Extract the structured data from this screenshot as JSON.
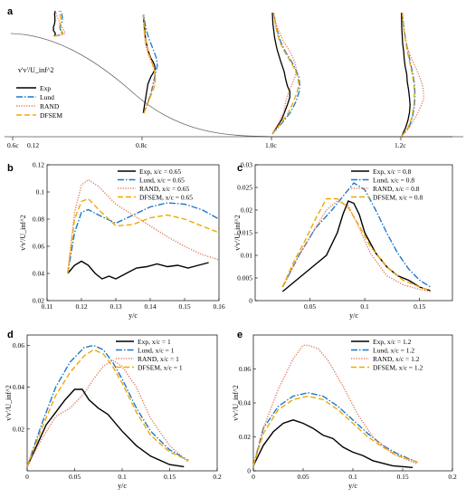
{
  "figure": {
    "panel_letters": [
      "a",
      "b",
      "c",
      "d",
      "e"
    ]
  },
  "styles": {
    "Exp": {
      "color": "#000000",
      "dash": ""
    },
    "Lund": {
      "color": "#1f78c8",
      "dash": "7 2 1.5 2"
    },
    "RAND": {
      "color": "#e0785a",
      "dash": "1.2 1.6"
    },
    "DFSEM": {
      "color": "#f0a800",
      "dash": "6 3"
    }
  },
  "chart_data": [
    {
      "panel": "a",
      "type": "line",
      "ylabel": "v'v'/U_inf^2",
      "x_tick_labels": [
        "0.6c",
        "0.12",
        "0.8c",
        "1.0c",
        "1.2c"
      ],
      "legend": [
        "Exp",
        "Lund",
        "RAND",
        "DFSEM"
      ],
      "series": [
        {
          "name": "Exp",
          "profiles": [
            "0.65",
            "0.8",
            "1.0",
            "1.2"
          ]
        },
        {
          "name": "Lund",
          "profiles": [
            "0.65",
            "0.8",
            "1.0",
            "1.2"
          ]
        },
        {
          "name": "RAND",
          "profiles": [
            "0.65",
            "0.8",
            "1.0",
            "1.2"
          ]
        },
        {
          "name": "DFSEM",
          "profiles": [
            "0.65",
            "0.8",
            "1.0",
            "1.2"
          ]
        }
      ]
    },
    {
      "panel": "b",
      "type": "line",
      "xlabel": "y/c",
      "ylabel": "v'v'/U_inf^2",
      "xlim": [
        0.11,
        0.16
      ],
      "ylim": [
        0.02,
        0.12
      ],
      "xticks": [
        0.11,
        0.12,
        0.13,
        0.14,
        0.15,
        0.16
      ],
      "yticks": [
        0.02,
        0.04,
        0.06,
        0.08,
        0.1,
        0.12
      ],
      "legend_position": "top-right",
      "series": [
        {
          "name": "Exp, x/c = 0.65",
          "x": [
            0.116,
            0.118,
            0.12,
            0.122,
            0.124,
            0.126,
            0.128,
            0.13,
            0.133,
            0.136,
            0.139,
            0.142,
            0.145,
            0.148,
            0.151,
            0.154,
            0.157
          ],
          "y": [
            0.04,
            0.046,
            0.049,
            0.046,
            0.04,
            0.036,
            0.038,
            0.036,
            0.04,
            0.044,
            0.045,
            0.047,
            0.045,
            0.046,
            0.044,
            0.046,
            0.048
          ]
        },
        {
          "name": "Lund, x/c = 0.65",
          "x": [
            0.116,
            0.118,
            0.12,
            0.122,
            0.125,
            0.13,
            0.135,
            0.14,
            0.145,
            0.15,
            0.155,
            0.16
          ],
          "y": [
            0.04,
            0.07,
            0.085,
            0.087,
            0.083,
            0.077,
            0.083,
            0.089,
            0.092,
            0.091,
            0.087,
            0.08
          ]
        },
        {
          "name": "RAND, x/c = 0.65",
          "x": [
            0.116,
            0.118,
            0.12,
            0.122,
            0.125,
            0.13,
            0.135,
            0.14,
            0.145,
            0.15,
            0.155,
            0.16
          ],
          "y": [
            0.04,
            0.085,
            0.105,
            0.109,
            0.104,
            0.091,
            0.083,
            0.075,
            0.067,
            0.06,
            0.054,
            0.05
          ]
        },
        {
          "name": "DFSEM, x/c = 0.65",
          "x": [
            0.116,
            0.118,
            0.12,
            0.122,
            0.125,
            0.13,
            0.135,
            0.14,
            0.145,
            0.15,
            0.155,
            0.16
          ],
          "y": [
            0.04,
            0.08,
            0.093,
            0.095,
            0.087,
            0.075,
            0.076,
            0.081,
            0.083,
            0.08,
            0.075,
            0.07
          ]
        }
      ]
    },
    {
      "panel": "c",
      "type": "line",
      "xlabel": "y/c",
      "ylabel": "v'v'/U_inf^2",
      "xlim": [
        0,
        0.18
      ],
      "ylim": [
        0,
        0.03
      ],
      "xticks": [
        0.05,
        0.1,
        0.15
      ],
      "yticks": [
        0,
        0.005,
        0.01,
        0.015,
        0.02,
        0.025,
        0.03
      ],
      "legend_position": "top-right",
      "series": [
        {
          "name": "Exp, x/c = 0.8",
          "x": [
            0.025,
            0.035,
            0.045,
            0.055,
            0.065,
            0.075,
            0.08,
            0.085,
            0.09,
            0.095,
            0.1,
            0.11,
            0.12,
            0.13,
            0.14,
            0.15,
            0.16
          ],
          "y": [
            0.002,
            0.004,
            0.006,
            0.008,
            0.01,
            0.015,
            0.019,
            0.022,
            0.0215,
            0.019,
            0.015,
            0.0105,
            0.0075,
            0.0055,
            0.0045,
            0.003,
            0.0022
          ]
        },
        {
          "name": "Lund, x/c = 0.8",
          "x": [
            0.025,
            0.04,
            0.055,
            0.07,
            0.08,
            0.09,
            0.1,
            0.11,
            0.12,
            0.13,
            0.14,
            0.15,
            0.16
          ],
          "y": [
            0.003,
            0.01,
            0.016,
            0.02,
            0.023,
            0.026,
            0.0245,
            0.02,
            0.015,
            0.0105,
            0.007,
            0.0045,
            0.003
          ]
        },
        {
          "name": "RAND, x/c = 0.8",
          "x": [
            0.025,
            0.04,
            0.055,
            0.065,
            0.075,
            0.085,
            0.095,
            0.105,
            0.12,
            0.135,
            0.15,
            0.16
          ],
          "y": [
            0.003,
            0.01,
            0.016,
            0.02,
            0.022,
            0.021,
            0.016,
            0.0105,
            0.0055,
            0.0035,
            0.0025,
            0.002
          ]
        },
        {
          "name": "DFSEM, x/c = 0.8",
          "x": [
            0.025,
            0.035,
            0.045,
            0.055,
            0.065,
            0.075,
            0.085,
            0.095,
            0.105,
            0.12,
            0.135,
            0.15,
            0.16
          ],
          "y": [
            0.003,
            0.0085,
            0.013,
            0.018,
            0.0225,
            0.0225,
            0.0205,
            0.0165,
            0.012,
            0.0075,
            0.0045,
            0.003,
            0.0022
          ]
        }
      ]
    },
    {
      "panel": "d",
      "type": "line",
      "xlabel": "y/c",
      "ylabel": "v'v'/U_inf^2",
      "xlim": [
        0,
        0.2
      ],
      "ylim": [
        0,
        0.065
      ],
      "xticks": [
        0,
        0.05,
        0.1,
        0.15,
        0.2
      ],
      "yticks": [
        0.02,
        0.04,
        0.06
      ],
      "legend_position": "top-right",
      "series": [
        {
          "name": "Exp, x/c = 1",
          "x": [
            0,
            0.01,
            0.02,
            0.03,
            0.04,
            0.05,
            0.058,
            0.065,
            0.075,
            0.085,
            0.1,
            0.115,
            0.13,
            0.15,
            0.165
          ],
          "y": [
            0.002,
            0.012,
            0.022,
            0.028,
            0.034,
            0.039,
            0.039,
            0.034,
            0.03,
            0.027,
            0.019,
            0.012,
            0.007,
            0.003,
            0.002
          ]
        },
        {
          "name": "Lund, x/c = 1",
          "x": [
            0,
            0.015,
            0.03,
            0.045,
            0.06,
            0.07,
            0.08,
            0.09,
            0.1,
            0.115,
            0.13,
            0.15,
            0.17
          ],
          "y": [
            0.002,
            0.022,
            0.04,
            0.052,
            0.059,
            0.06,
            0.058,
            0.052,
            0.044,
            0.03,
            0.019,
            0.01,
            0.005
          ]
        },
        {
          "name": "RAND, x/c = 1",
          "x": [
            0,
            0.015,
            0.03,
            0.045,
            0.06,
            0.07,
            0.08,
            0.09,
            0.1,
            0.115,
            0.13,
            0.15,
            0.17
          ],
          "y": [
            0.002,
            0.015,
            0.026,
            0.03,
            0.037,
            0.044,
            0.05,
            0.053,
            0.05,
            0.04,
            0.025,
            0.012,
            0.004
          ]
        },
        {
          "name": "DFSEM, x/c = 1",
          "x": [
            0,
            0.015,
            0.03,
            0.045,
            0.06,
            0.07,
            0.08,
            0.09,
            0.1,
            0.115,
            0.13,
            0.15,
            0.17
          ],
          "y": [
            0.002,
            0.02,
            0.036,
            0.047,
            0.055,
            0.058,
            0.056,
            0.05,
            0.042,
            0.028,
            0.017,
            0.009,
            0.005
          ]
        }
      ]
    },
    {
      "panel": "e",
      "type": "line",
      "xlabel": "y/c",
      "ylabel": "v'v'/U_inf^2",
      "xlim": [
        0,
        0.2
      ],
      "ylim": [
        0,
        0.08
      ],
      "xticks": [
        0,
        0.05,
        0.1,
        0.15,
        0.2
      ],
      "yticks": [
        0,
        0.02,
        0.04,
        0.06
      ],
      "legend_position": "top-right",
      "series": [
        {
          "name": "Exp, x/c = 1.2",
          "x": [
            0,
            0.01,
            0.02,
            0.03,
            0.04,
            0.05,
            0.06,
            0.07,
            0.08,
            0.09,
            0.1,
            0.11,
            0.12,
            0.14,
            0.16
          ],
          "y": [
            0.003,
            0.015,
            0.023,
            0.028,
            0.03,
            0.028,
            0.025,
            0.021,
            0.019,
            0.014,
            0.011,
            0.009,
            0.006,
            0.003,
            0.002
          ]
        },
        {
          "name": "Lund, x/c = 1.2",
          "x": [
            0,
            0.01,
            0.025,
            0.04,
            0.055,
            0.07,
            0.085,
            0.1,
            0.115,
            0.13,
            0.145,
            0.165
          ],
          "y": [
            0.003,
            0.025,
            0.038,
            0.044,
            0.046,
            0.044,
            0.038,
            0.03,
            0.022,
            0.015,
            0.01,
            0.005
          ]
        },
        {
          "name": "RAND, x/c = 1.2",
          "x": [
            0,
            0.01,
            0.025,
            0.04,
            0.05,
            0.055,
            0.065,
            0.075,
            0.09,
            0.105,
            0.12,
            0.14,
            0.165
          ],
          "y": [
            0.003,
            0.025,
            0.048,
            0.066,
            0.074,
            0.074,
            0.072,
            0.065,
            0.05,
            0.033,
            0.02,
            0.01,
            0.004
          ]
        },
        {
          "name": "DFSEM, x/c = 1.2",
          "x": [
            0,
            0.01,
            0.025,
            0.04,
            0.055,
            0.07,
            0.085,
            0.1,
            0.115,
            0.13,
            0.145,
            0.165
          ],
          "y": [
            0.003,
            0.022,
            0.036,
            0.042,
            0.044,
            0.042,
            0.036,
            0.028,
            0.02,
            0.014,
            0.009,
            0.005
          ]
        }
      ]
    }
  ]
}
